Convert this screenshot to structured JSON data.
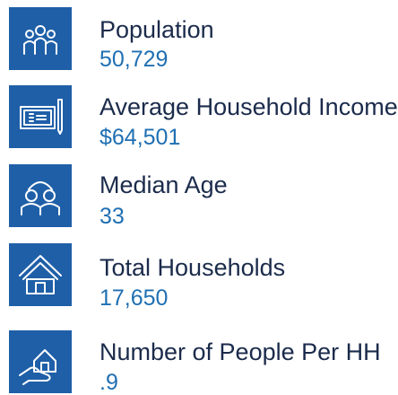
{
  "items": [
    {
      "label": "Population",
      "value": "50,729"
    },
    {
      "label": "Average Household Income",
      "value": "$64,501"
    },
    {
      "label": "Median Age",
      "value": "33"
    },
    {
      "label": "Total Households",
      "value": "17,650"
    },
    {
      "label": "Number of People Per HH",
      "value": ".9"
    }
  ]
}
